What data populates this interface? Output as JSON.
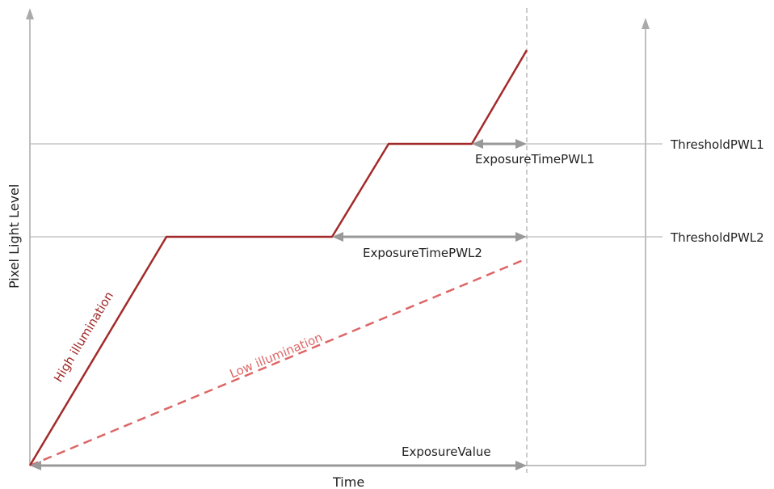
{
  "axes": {
    "y_label": "Pixel Light  Level",
    "x_label": "Time"
  },
  "thresholds": {
    "pwl1_label": "ThresholdPWL1",
    "pwl2_label": "ThresholdPWL2"
  },
  "exposure": {
    "pwl1_label": "ExposureTimePWL1",
    "pwl2_label": "ExposureTimePWL2",
    "value_label": "ExposureValue"
  },
  "curves": {
    "high_label": "High illumination",
    "low_label": "Low illumination"
  },
  "colors": {
    "high_curve": "#a32a2a",
    "low_curve": "#dd6666",
    "axis": "#aaaaaa",
    "threshold_line": "#bbbbbb",
    "measure_arrow": "#999999",
    "text": "#222222"
  }
}
